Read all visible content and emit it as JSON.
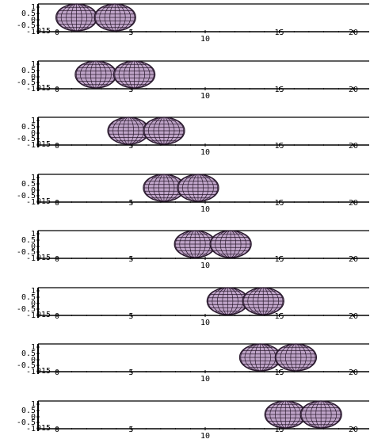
{
  "panel_template": {
    "y_tick_labels": [
      "1",
      "0.5",
      "0",
      "-0.5",
      "-1"
    ],
    "y_overlap_text": "015",
    "x_tick_labels": [
      "0",
      "5",
      "10",
      "15",
      "20"
    ],
    "x_range": [
      0,
      20
    ]
  },
  "panels": [
    {
      "index": 1,
      "ellipsoid_centers_x": [
        2.6,
        5.2
      ]
    },
    {
      "index": 2,
      "ellipsoid_centers_x": [
        3.9,
        6.5
      ]
    },
    {
      "index": 3,
      "ellipsoid_centers_x": [
        6.1,
        8.5
      ]
    },
    {
      "index": 4,
      "ellipsoid_centers_x": [
        8.5,
        10.8
      ]
    },
    {
      "index": 5,
      "ellipsoid_centers_x": [
        10.6,
        13.0
      ]
    },
    {
      "index": 6,
      "ellipsoid_centers_x": [
        12.8,
        15.2
      ]
    },
    {
      "index": 7,
      "ellipsoid_centers_x": [
        15.0,
        17.4
      ]
    },
    {
      "index": 8,
      "ellipsoid_centers_x": [
        16.7,
        19.1
      ]
    }
  ],
  "colors": {
    "ellipsoid_fill": "#bfa4c8",
    "ellipsoid_mesh": "#2a1a2e",
    "axis": "#000000"
  }
}
